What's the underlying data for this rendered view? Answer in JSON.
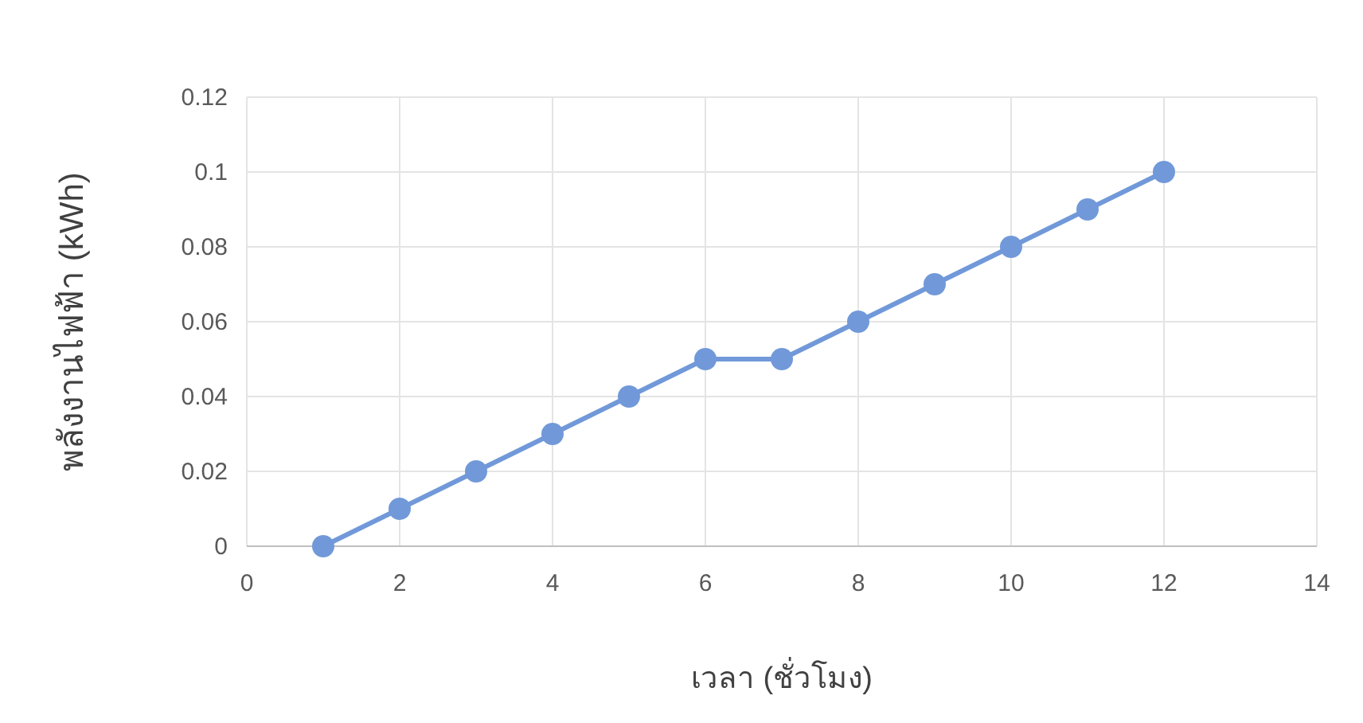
{
  "chart_data": {
    "type": "line",
    "xlabel": "เวลา (ชั่วโมง)",
    "ylabel": "พลังงานไฟฟ้า (kWh)",
    "x": [
      1,
      2,
      3,
      4,
      5,
      6,
      7,
      8,
      9,
      10,
      11,
      12
    ],
    "series": [
      {
        "color": "#7199d9",
        "values": [
          0,
          0.01,
          0.02,
          0.03,
          0.04,
          0.05,
          0.05,
          0.06,
          0.07,
          0.08,
          0.09,
          0.1
        ]
      }
    ],
    "xlim": [
      0,
      14
    ],
    "xticks": [
      0,
      2,
      4,
      6,
      8,
      10,
      12,
      14
    ],
    "ylim": [
      0,
      0.12
    ],
    "yticks": [
      0,
      0.02,
      0.04,
      0.06,
      0.08,
      0.1,
      0.12
    ],
    "grid": true,
    "marker": "circle",
    "line_style": "solid"
  }
}
